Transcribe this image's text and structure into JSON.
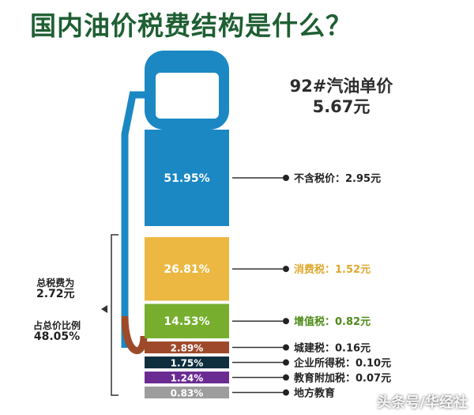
{
  "title": "国内油价税费结构是什么？",
  "price_header": {
    "line1": "92#汽油单价",
    "line2": "5.67元"
  },
  "tax_summary": {
    "total_label": "总税费为",
    "total_value": "2.72元",
    "ratio_label": "占总价比例",
    "ratio_value": "48.05%"
  },
  "watermark": "头条号/华经社",
  "chart_data": {
    "type": "bar",
    "title": "国内油价税费结构是什么？",
    "subtitle": "92#汽油单价 5.67元",
    "categories": [
      "不含税价",
      "消费税",
      "增值税",
      "城建税",
      "企业所得税",
      "教育附加税",
      "地方教育附加税"
    ],
    "segment_labels": [
      "51.95%",
      "26.81%",
      "14.53%",
      "2.89%",
      "1.75%",
      "1.24%",
      "0.83%"
    ],
    "legend_labels": [
      "不含税价：2.95元",
      "消费税：1.52元",
      "增值税：0.82元",
      "城建税：0.16元",
      "企业所得税：0.10元",
      "教育附加税：0.07元",
      "地方教育"
    ],
    "series": [
      {
        "values": [
          2.95,
          1.52,
          0.82,
          0.16,
          0.1,
          0.07,
          0.05
        ]
      }
    ],
    "percent": [
      51.95,
      26.81,
      14.53,
      2.89,
      1.75,
      1.24,
      0.83
    ],
    "colors": [
      "#1b88c4",
      "#ecb842",
      "#77ae2e",
      "#9e4a2a",
      "#0f2f3e",
      "#6a2c92",
      "#9d9d9d"
    ],
    "text_colors": [
      "#222222",
      "#e0a82c",
      "#4d8a16",
      "#222222",
      "#222222",
      "#222222",
      "#222222"
    ]
  }
}
